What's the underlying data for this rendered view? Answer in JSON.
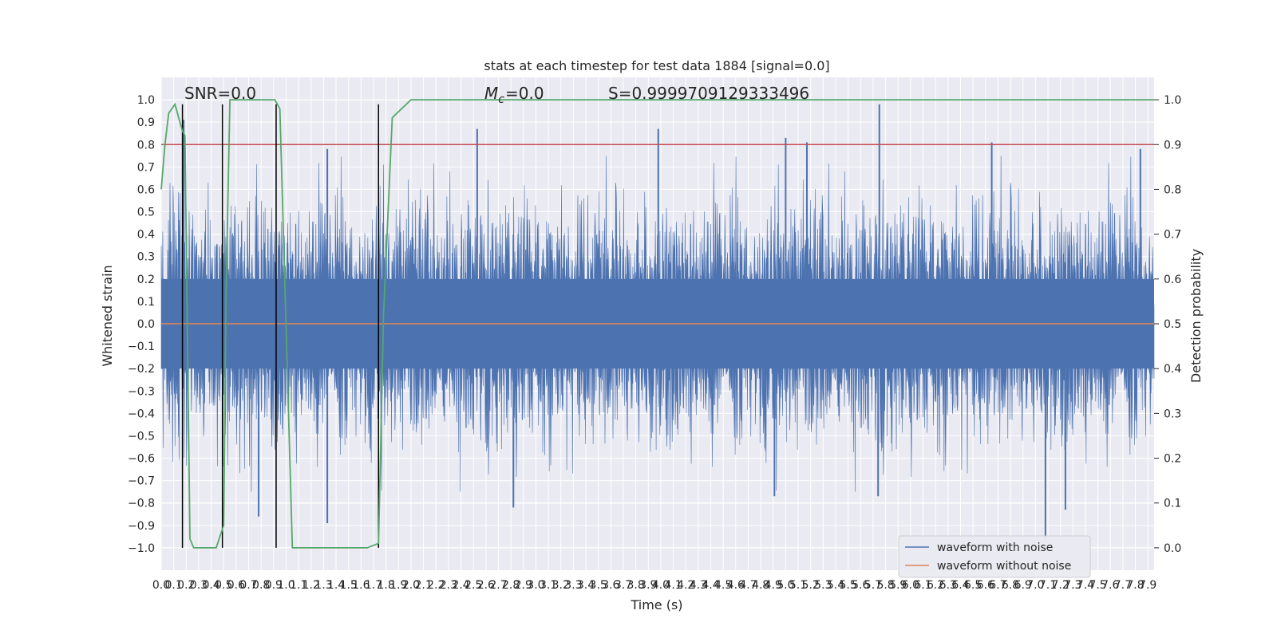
{
  "chart_data": {
    "type": "line",
    "title": "stats at each timestep for test data 1884 [signal=0.0]",
    "xlabel": "Time (s)",
    "ylabel_left": "Whitened strain",
    "ylabel_right": "Detection probability",
    "xlim": [
      0.0,
      7.95
    ],
    "ylim_left": [
      -1.1,
      1.1
    ],
    "ylim_right": [
      -0.05,
      1.05
    ],
    "x_ticks": [
      0.0,
      0.1,
      0.2,
      0.3,
      0.4,
      0.5,
      0.6,
      0.7,
      0.8,
      0.9,
      1.0,
      1.1,
      1.2,
      1.3,
      1.4,
      1.5,
      1.6,
      1.7,
      1.8,
      1.9,
      2.0,
      2.1,
      2.2,
      2.3,
      2.4,
      2.5,
      2.6,
      2.7,
      2.8,
      2.9,
      3.0,
      3.1,
      3.2,
      3.3,
      3.4,
      3.5,
      3.6,
      3.7,
      3.8,
      3.9,
      4.0,
      4.1,
      4.2,
      4.3,
      4.4,
      4.5,
      4.6,
      4.7,
      4.8,
      4.9,
      5.0,
      5.1,
      5.2,
      5.3,
      5.4,
      5.5,
      5.6,
      5.7,
      5.8,
      5.9,
      6.0,
      6.1,
      6.2,
      6.3,
      6.4,
      6.5,
      6.6,
      6.7,
      6.8,
      6.9,
      7.0,
      7.1,
      7.2,
      7.3,
      7.4,
      7.5,
      7.6,
      7.7,
      7.8,
      7.9
    ],
    "y_ticks_left": [
      -1.0,
      -0.9,
      -0.8,
      -0.7,
      -0.6,
      -0.5,
      -0.4,
      -0.3,
      -0.2,
      -0.1,
      0.0,
      0.1,
      0.2,
      0.3,
      0.4,
      0.5,
      0.6,
      0.7,
      0.8,
      0.9,
      1.0
    ],
    "y_ticks_right": [
      0.0,
      0.1,
      0.2,
      0.3,
      0.4,
      0.5,
      0.6,
      0.7,
      0.8,
      0.9,
      1.0
    ],
    "grid": true,
    "legend_position": "lower-right",
    "annotations": {
      "snr": "SNR=0.0",
      "mc": "=0.0",
      "s": "S=0.9999709129333496"
    },
    "series": [
      {
        "name": "waveform with noise",
        "color": "#4c72b0",
        "axis": "left",
        "style": "dense noise",
        "typical_amplitude": 0.25,
        "peaks": [
          {
            "x": 0.18,
            "y": 0.91
          },
          {
            "x": 2.53,
            "y": 0.87
          },
          {
            "x": 3.98,
            "y": 0.87
          },
          {
            "x": 5.75,
            "y": 0.98
          },
          {
            "x": 6.65,
            "y": 0.81
          },
          {
            "x": 7.84,
            "y": 0.78
          },
          {
            "x": 5.0,
            "y": 0.83
          },
          {
            "x": 5.17,
            "y": 0.81
          },
          {
            "x": 1.33,
            "y": 0.78
          },
          {
            "x": 7.08,
            "y": -0.96
          },
          {
            "x": 1.33,
            "y": -0.89
          },
          {
            "x": 0.78,
            "y": -0.86
          },
          {
            "x": 2.82,
            "y": -0.82
          },
          {
            "x": 4.91,
            "y": -0.77
          },
          {
            "x": 7.24,
            "y": -0.83
          },
          {
            "x": 5.74,
            "y": -0.77
          }
        ]
      },
      {
        "name": "waveform without noise",
        "color": "#dd8452",
        "axis": "left",
        "x": [
          0.0,
          7.95
        ],
        "y": [
          0.0,
          0.0
        ]
      },
      {
        "name": "",
        "color": "#55a868",
        "axis": "right",
        "x": [
          0.0,
          0.03,
          0.06,
          0.11,
          0.17,
          0.19,
          0.23,
          0.26,
          0.34,
          0.44,
          0.5,
          0.52,
          0.55,
          0.62,
          0.7,
          0.73,
          0.8,
          0.86,
          0.91,
          0.95,
          1.05,
          1.4,
          1.65,
          1.74,
          1.78,
          1.85,
          2.0,
          7.95
        ],
        "y": [
          0.8,
          0.9,
          0.97,
          0.99,
          0.93,
          0.92,
          0.02,
          0.0,
          0.0,
          0.0,
          0.05,
          0.58,
          1.0,
          1.0,
          1.0,
          1.0,
          1.0,
          1.0,
          1.0,
          0.98,
          0.0,
          0.0,
          0.0,
          0.01,
          0.52,
          0.96,
          1.0,
          1.0
        ]
      }
    ],
    "threshold_line": {
      "color": "#c44e52",
      "axis": "right",
      "y": 0.9
    },
    "vertical_markers": {
      "color": "#000000",
      "x": [
        0.17,
        0.49,
        0.92,
        1.74
      ],
      "y_range_left": [
        -1.0,
        0.98
      ]
    }
  }
}
